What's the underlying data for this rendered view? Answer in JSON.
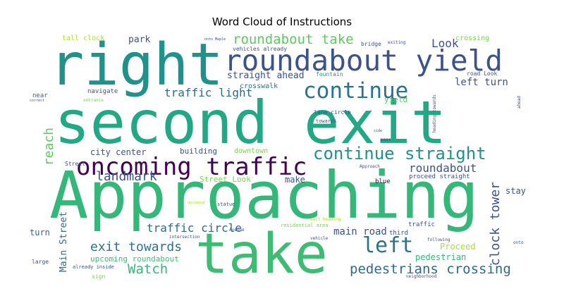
{
  "title": "Word Cloud of Instructions",
  "words": {
    "second_exit": {
      "text": "second exit",
      "color": "#22a884"
    },
    "approaching": {
      "text": "Approaching",
      "color": "#35b779"
    },
    "right": {
      "text": "right",
      "color": "#21918c"
    },
    "take": {
      "text": "take",
      "color": "#3ebc73"
    },
    "roundabout_yield": {
      "text": "roundabout yield",
      "color": "#3b528b"
    },
    "continue": {
      "text": "continue",
      "color": "#2c728e"
    },
    "oncoming_traffic": {
      "text": "oncoming traffic",
      "color": "#440154"
    },
    "continue_straight": {
      "text": "continue straight",
      "color": "#21918c"
    },
    "roundabout_take": {
      "text": "roundabout take",
      "color": "#5ec962"
    },
    "left": {
      "text": "left",
      "color": "#2c728e"
    },
    "pedestrians_crossing": {
      "text": "pedestrians crossing",
      "color": "#31688e"
    },
    "watch": {
      "text": "Watch",
      "color": "#35b779"
    },
    "exit_towards": {
      "text": "exit towards",
      "color": "#2c728e"
    },
    "traffic_circle": {
      "text": "traffic circle",
      "color": "#31688e"
    },
    "landmark": {
      "text": "landmark",
      "color": "#3b528b"
    },
    "traffic_light": {
      "text": "traffic light",
      "color": "#31688e"
    },
    "clock_tower": {
      "text": "clock tower",
      "color": "#3b528b"
    },
    "roundabout": {
      "text": "roundabout",
      "color": "#3b528b"
    },
    "look": {
      "text": "Look",
      "color": "#3b528b"
    },
    "left_turn": {
      "text": "left turn",
      "color": "#3b528b"
    },
    "straight_ahead": {
      "text": "straight ahead",
      "color": "#3b528b"
    },
    "reach": {
      "text": "reach",
      "color": "#5ec962"
    },
    "main_street": {
      "text": "Main Street",
      "color": "#31688e"
    },
    "main_road": {
      "text": "main road",
      "color": "#3b528b"
    },
    "proceed": {
      "text": "Proceed",
      "color": "#addc30"
    },
    "pedestrian": {
      "text": "pedestrian",
      "color": "#35b779"
    },
    "upcoming_roundabout": {
      "text": "upcoming roundabout",
      "color": "#3ebc73"
    },
    "park": {
      "text": "park",
      "color": "#3b528b"
    },
    "tall_clock": {
      "text": "tall clock",
      "color": "#addc30"
    },
    "city_center": {
      "text": "city center",
      "color": "#3b528b"
    },
    "building": {
      "text": "building",
      "color": "#3b528b"
    },
    "downtown": {
      "text": "downtown",
      "color": "#7ad151"
    },
    "make": {
      "text": "make",
      "color": "#3b528b"
    },
    "street_look": {
      "text": "Street Look",
      "color": "#7ad151"
    },
    "stay": {
      "text": "stay",
      "color": "#3b528b"
    },
    "turn": {
      "text": "turn",
      "color": "#31688e"
    },
    "crossing": {
      "text": "crossing",
      "color": "#7ad151"
    },
    "yield": {
      "text": "yield",
      "color": "#5ec962"
    },
    "crosswalk": {
      "text": "crosswalk",
      "color": "#2c728e"
    },
    "navigate": {
      "text": "navigate",
      "color": "#3b528b"
    },
    "near": {
      "text": "near",
      "color": "#31688e"
    },
    "fountain": {
      "text": "fountain",
      "color": "#21918c"
    },
    "bridge": {
      "text": "bridge",
      "color": "#3b528b"
    },
    "vehicles_already": {
      "text": "vehicles already",
      "color": "#3b528b"
    },
    "blue": {
      "text": "blue",
      "color": "#440154"
    },
    "third": {
      "text": "third",
      "color": "#3b528b"
    },
    "traffic": {
      "text": "traffic",
      "color": "#3b528b"
    },
    "proceed_straight": {
      "text": "proceed straight",
      "color": "#3b528b"
    },
    "road_look": {
      "text": "road Look",
      "color": "#3b528b"
    },
    "street": {
      "text": "Street",
      "color": "#3b528b"
    },
    "lane_circle": {
      "text": "lane circle",
      "color": "#3b528b"
    },
    "towards": {
      "text": "towards",
      "color": "#3b528b"
    },
    "residential_area": {
      "text": "residential area",
      "color": "#7ad151"
    },
    "statue": {
      "text": "statue",
      "color": "#3b528b"
    },
    "sign": {
      "text": "sign",
      "color": "#7ad151"
    },
    "already_inside": {
      "text": "already inside",
      "color": "#3b528b"
    },
    "large": {
      "text": "large",
      "color": "#3b528b"
    },
    "approach": {
      "text": "Approach",
      "color": "#3b528b"
    },
    "exit_heading": {
      "text": "exit heading",
      "color": "#addc30"
    },
    "neighborhood": {
      "text": "neighborhood",
      "color": "#3b528b"
    },
    "heading_towards": {
      "text": "heading towards",
      "color": "#3b528b"
    },
    "following": {
      "text": "following",
      "color": "#3b528b"
    },
    "onto": {
      "text": "onto",
      "color": "#3b528b"
    },
    "exiting": {
      "text": "exiting",
      "color": "#3b528b"
    },
    "entrance": {
      "text": "entrance",
      "color": "#7ad151"
    },
    "ahead": {
      "text": "ahead",
      "color": "#3b528b"
    },
    "pass": {
      "text": "pass",
      "color": "#3b528b"
    },
    "vehicle": {
      "text": "vehicle",
      "color": "#3b528b"
    },
    "avenue": {
      "text": "Avenue",
      "color": "#3b528b"
    },
    "intersection": {
      "text": "intersection",
      "color": "#3b528b"
    },
    "onto_maple": {
      "text": "onto Maple",
      "color": "#3b528b"
    },
    "upcoming": {
      "text": "upcoming",
      "color": "#addc30"
    },
    "correct": {
      "text": "correct",
      "color": "#3b528b"
    },
    "side": {
      "text": "side",
      "color": "#3b528b"
    }
  }
}
